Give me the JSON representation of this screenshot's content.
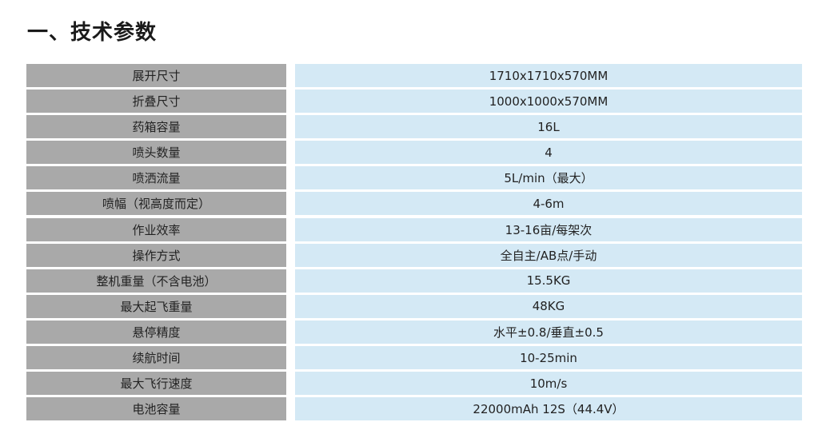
{
  "title": "一、技术参数",
  "rows": [
    {
      "label": "展开尺寸",
      "value": "1710x1710x570MM"
    },
    {
      "label": "折叠尺寸",
      "value": "1000x1000x570MM"
    },
    {
      "label": "药箱容量",
      "value": "16L"
    },
    {
      "label": "喷头数量",
      "value": "4"
    },
    {
      "label": "喷洒流量",
      "value": "5L/min（最大）"
    },
    {
      "label": "喷幅（视高度而定）",
      "value": "4-6m"
    },
    {
      "label": "作业效率",
      "value": "13-16亩/每架次"
    },
    {
      "label": "操作方式",
      "value": "全自主/AB点/手动"
    },
    {
      "label": "整机重量（不含电池）",
      "value": "15.5KG"
    },
    {
      "label": "最大起飞重量",
      "value": "48KG"
    },
    {
      "label": "悬停精度",
      "value": "水平±0.8/垂直±0.5"
    },
    {
      "label": "续航时间",
      "value": "10-25min"
    },
    {
      "label": "最大飞行速度",
      "value": "10m/s"
    },
    {
      "label": "电池容量",
      "value": "22000mAh 12S（44.4V）"
    }
  ]
}
